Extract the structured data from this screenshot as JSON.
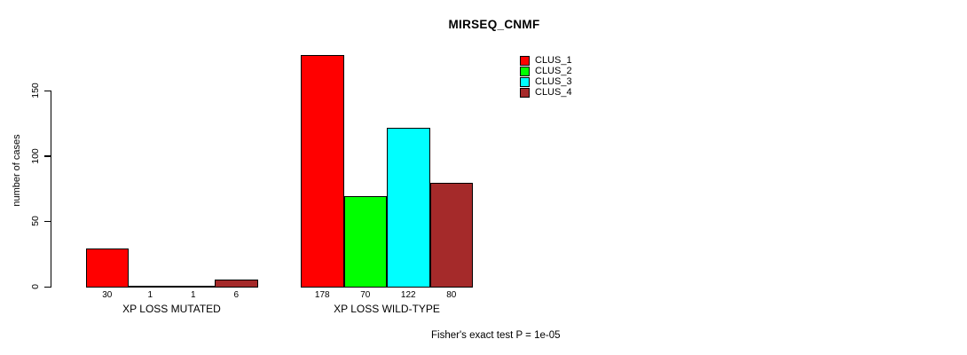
{
  "chart_data": {
    "type": "bar",
    "title": "MIRSEQ_CNMF",
    "ylabel": "number of cases",
    "xlabel": "",
    "groups": [
      {
        "label": "XP LOSS MUTATED",
        "values": [
          30,
          1,
          1,
          6
        ]
      },
      {
        "label": "XP LOSS WILD-TYPE",
        "values": [
          178,
          70,
          122,
          80
        ]
      }
    ],
    "series": [
      {
        "name": "CLUS_1",
        "color": "#FF0000"
      },
      {
        "name": "CLUS_2",
        "color": "#00FF00"
      },
      {
        "name": "CLUS_3",
        "color": "#00FFFF"
      },
      {
        "name": "CLUS_4",
        "color": "#A52A2A"
      }
    ],
    "yticks": [
      0,
      50,
      100,
      150
    ],
    "ylim": [
      0,
      178
    ],
    "grid": false,
    "bar_value_labels": true,
    "legend_position": "top-right",
    "annotation": "Fisher's exact test P = 1e-05",
    "axis_color": "#000000",
    "background_color": "#FFFFFF"
  }
}
